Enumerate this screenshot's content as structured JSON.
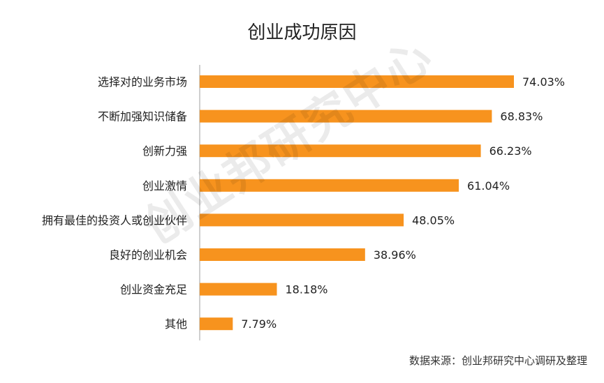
{
  "title": "创业成功原因",
  "watermark": "创业邦研究中心",
  "source": "数据来源：创业邦研究中心调研及整理",
  "colors": {
    "bar": "#F7931E",
    "axis": "#BFBFBF",
    "text": "#222222"
  },
  "chart_data": {
    "type": "bar",
    "orientation": "horizontal",
    "categories": [
      "选择对的业务市场",
      "不断加强知识储备",
      "创新力强",
      "创业激情",
      "拥有最佳的投资人或创业伙伴",
      "良好的创业机会",
      "创业资金充足",
      "其他"
    ],
    "values": [
      74.03,
      68.83,
      66.23,
      61.04,
      48.05,
      38.96,
      18.18,
      7.79
    ],
    "value_labels": [
      "74.03%",
      "68.83%",
      "66.23%",
      "61.04%",
      "48.05%",
      "38.96%",
      "18.18%",
      "7.79%"
    ],
    "title": "创业成功原因",
    "xlabel": "",
    "ylabel": "",
    "xlim": [
      0,
      80
    ],
    "grid": false,
    "legend": "none"
  }
}
